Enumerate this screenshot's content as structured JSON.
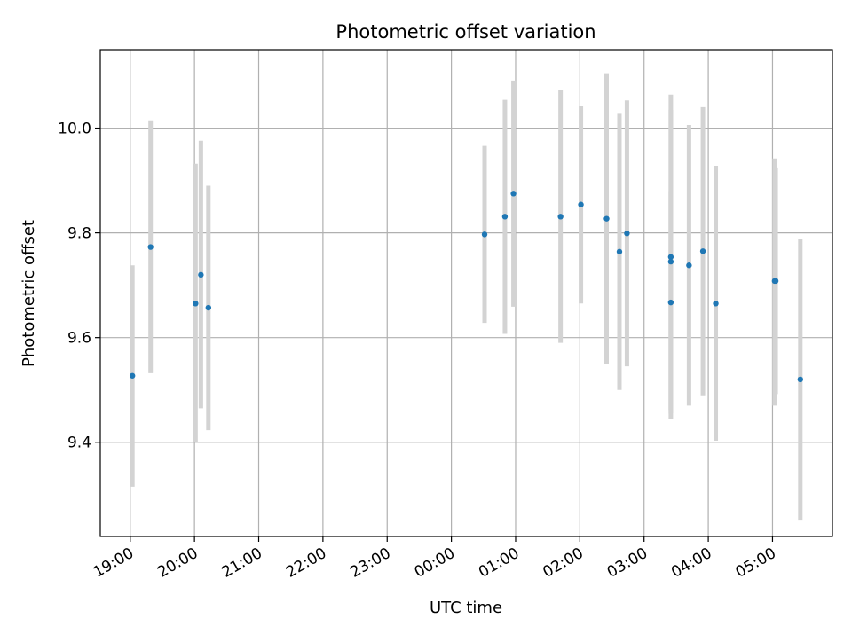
{
  "chart_data": {
    "type": "scatter",
    "title": "Photometric offset variation",
    "xlabel": "UTC time",
    "ylabel": "Photometric offset",
    "x_ticks": [
      "19:00",
      "20:00",
      "21:00",
      "22:00",
      "23:00",
      "00:00",
      "01:00",
      "02:00",
      "03:00",
      "04:00",
      "05:00"
    ],
    "y_ticks": [
      "9.4",
      "9.6",
      "9.8",
      "10.0"
    ],
    "xlim": [
      "18:32",
      "05:56"
    ],
    "ylim": [
      9.22,
      10.15
    ],
    "grid": true,
    "marker_color": "#1f77b4",
    "errorbar_color": "#d3d3d3",
    "points": [
      {
        "x": "19:02",
        "y": 9.527,
        "ylow": 9.315,
        "yhigh": 9.738
      },
      {
        "x": "19:19",
        "y": 9.773,
        "ylow": 9.532,
        "yhigh": 10.015
      },
      {
        "x": "20:01",
        "y": 9.665,
        "ylow": 9.4,
        "yhigh": 9.932
      },
      {
        "x": "20:06",
        "y": 9.72,
        "ylow": 9.465,
        "yhigh": 9.976
      },
      {
        "x": "20:13",
        "y": 9.657,
        "ylow": 9.423,
        "yhigh": 9.89
      },
      {
        "x": "00:31",
        "y": 9.797,
        "ylow": 9.628,
        "yhigh": 9.966
      },
      {
        "x": "00:50",
        "y": 9.831,
        "ylow": 9.607,
        "yhigh": 10.054
      },
      {
        "x": "00:58",
        "y": 9.875,
        "ylow": 9.659,
        "yhigh": 10.091
      },
      {
        "x": "01:42",
        "y": 9.831,
        "ylow": 9.59,
        "yhigh": 10.072
      },
      {
        "x": "02:01",
        "y": 9.854,
        "ylow": 9.665,
        "yhigh": 10.042
      },
      {
        "x": "02:25",
        "y": 9.827,
        "ylow": 9.55,
        "yhigh": 10.105
      },
      {
        "x": "02:37",
        "y": 9.764,
        "ylow": 9.5,
        "yhigh": 10.029
      },
      {
        "x": "02:44",
        "y": 9.799,
        "ylow": 9.545,
        "yhigh": 10.053
      },
      {
        "x": "03:25",
        "y": 9.754,
        "ylow": 9.462,
        "yhigh": 10.064
      },
      {
        "x": "03:25",
        "y": 9.745,
        "ylow": 9.455,
        "yhigh": 10.035
      },
      {
        "x": "03:25",
        "y": 9.667,
        "ylow": 9.445,
        "yhigh": 9.88
      },
      {
        "x": "03:42",
        "y": 9.738,
        "ylow": 9.47,
        "yhigh": 10.006
      },
      {
        "x": "03:55",
        "y": 9.765,
        "ylow": 9.488,
        "yhigh": 10.04
      },
      {
        "x": "04:07",
        "y": 9.665,
        "ylow": 9.403,
        "yhigh": 9.928
      },
      {
        "x": "05:02",
        "y": 9.708,
        "ylow": 9.47,
        "yhigh": 9.942
      },
      {
        "x": "05:03",
        "y": 9.708,
        "ylow": 9.492,
        "yhigh": 9.925
      },
      {
        "x": "05:26",
        "y": 9.52,
        "ylow": 9.252,
        "yhigh": 9.788
      }
    ]
  }
}
